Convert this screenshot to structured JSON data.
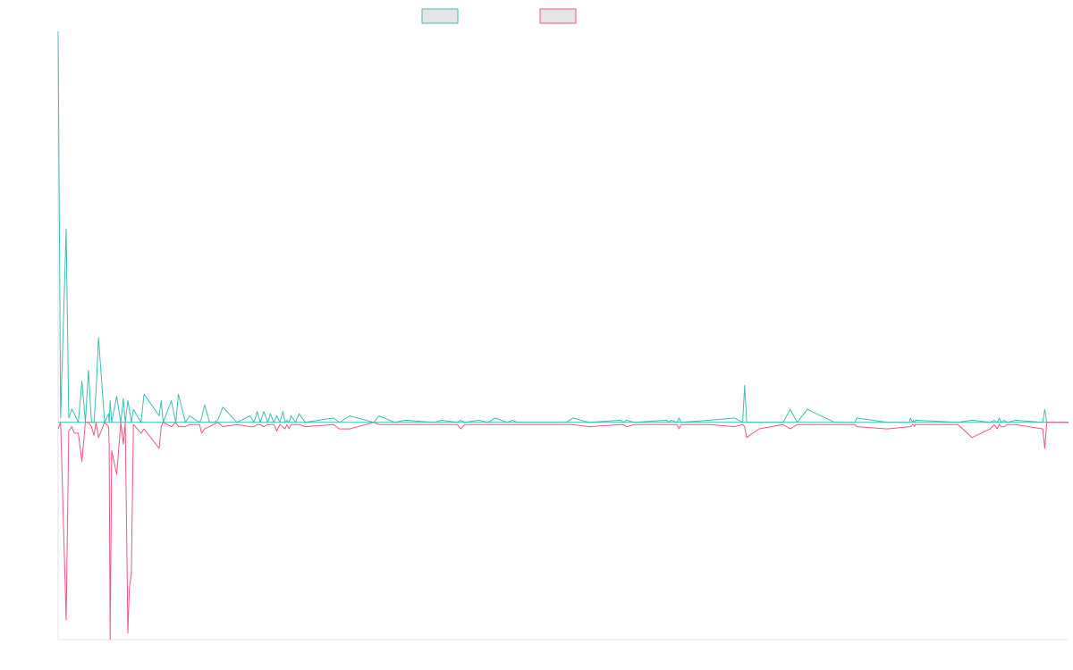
{
  "chart_data": {
    "type": "line",
    "title": "",
    "xlabel": "",
    "ylabel": "",
    "x_range": [
      0,
      1
    ],
    "ylim": [
      -100,
      180
    ],
    "grid": false,
    "legend_placement": "top-center",
    "colors": {
      "series_0": "#3dbdb7",
      "series_1": "#f0577d",
      "legend_fill": "#e5e5e5",
      "axis": "#e0e0e0",
      "baseline": "#3dbdb7"
    },
    "series": [
      {
        "x": [
          0,
          0.0025,
          0.008,
          0.0105,
          0.0135,
          0.016,
          0.02,
          0.0235,
          0.027,
          0.03,
          0.033,
          0.0355,
          0.0375,
          0.04,
          0.046,
          0.05,
          0.0505,
          0.0515,
          0.053,
          0.058,
          0.062,
          0.0645,
          0.0665,
          0.069,
          0.0705,
          0.0725,
          0.0745,
          0.082,
          0.085,
          0.1,
          0.102,
          0.104,
          0.112,
          0.1165,
          0.119,
          0.126,
          0.13,
          0.14,
          0.142,
          0.145,
          0.15,
          0.154,
          0.158,
          0.163,
          0.177,
          0.19,
          0.194,
          0.197,
          0.2,
          0.2035,
          0.2075,
          0.21,
          0.2135,
          0.2165,
          0.2195,
          0.2225,
          0.2245,
          0.2265,
          0.2285,
          0.2305,
          0.235,
          0.2385,
          0.2445,
          0.2725,
          0.2785,
          0.2885,
          0.3125,
          0.3175,
          0.333,
          0.3435,
          0.372,
          0.3795,
          0.395,
          0.3985,
          0.4025,
          0.4165,
          0.4255,
          0.4325,
          0.4445,
          0.4495,
          0.4545,
          0.503,
          0.5095,
          0.5255,
          0.557,
          0.5595,
          0.5625,
          0.5705,
          0.6025,
          0.6045,
          0.6065,
          0.6125,
          0.6145,
          0.6165,
          0.6445,
          0.6695,
          0.6775,
          0.6795,
          0.6815,
          0.6935,
          0.7175,
          0.7245,
          0.7315,
          0.7415,
          0.7685,
          0.7865,
          0.7885,
          0.7905,
          0.8205,
          0.8425,
          0.8435,
          0.8455,
          0.8465,
          0.8475,
          0.8485,
          0.8905,
          0.9045,
          0.9225,
          0.9265,
          0.9295,
          0.9315,
          0.9335,
          0.9365,
          0.9395,
          0.9475,
          0.9745,
          0.9765,
          0.9785,
          1
        ],
        "y": [
          180,
          2,
          89,
          2,
          6,
          4,
          0,
          19,
          0,
          24,
          0,
          0,
          14,
          39,
          0,
          4,
          0,
          10,
          0,
          12,
          0,
          11,
          0,
          10,
          6,
          0,
          6,
          0,
          13,
          3,
          10,
          0,
          10,
          0,
          13,
          0,
          3,
          0,
          2,
          8,
          0,
          0,
          1,
          7,
          0,
          3,
          0,
          5,
          0,
          5,
          0,
          4,
          0,
          3,
          0,
          5,
          0,
          1,
          0,
          3,
          0,
          4,
          0,
          2,
          0,
          3,
          0,
          3,
          0,
          1,
          0,
          1,
          0,
          1,
          0,
          1,
          0,
          2,
          0,
          1,
          0,
          0,
          2,
          0,
          1,
          0,
          1,
          0,
          1,
          0,
          1,
          0,
          2,
          0,
          1,
          2,
          0,
          17,
          0,
          0,
          0,
          6,
          0,
          6,
          0,
          0,
          0,
          2,
          0,
          0,
          2,
          0,
          1,
          0,
          1,
          0,
          1,
          0,
          1,
          0,
          2,
          0,
          1,
          0,
          1,
          0,
          6,
          0,
          0
        ]
      },
      {
        "x": [
          0,
          0.0025,
          0.008,
          0.0105,
          0.0135,
          0.016,
          0.02,
          0.0235,
          0.027,
          0.03,
          0.033,
          0.0355,
          0.0375,
          0.04,
          0.046,
          0.05,
          0.0505,
          0.0515,
          0.053,
          0.058,
          0.062,
          0.0645,
          0.0665,
          0.069,
          0.0705,
          0.0725,
          0.0745,
          0.082,
          0.085,
          0.1,
          0.102,
          0.104,
          0.112,
          0.1165,
          0.119,
          0.126,
          0.13,
          0.14,
          0.142,
          0.145,
          0.15,
          0.154,
          0.158,
          0.163,
          0.177,
          0.19,
          0.194,
          0.197,
          0.2,
          0.2035,
          0.2075,
          0.21,
          0.2135,
          0.2165,
          0.2195,
          0.2225,
          0.2245,
          0.2265,
          0.2285,
          0.2305,
          0.235,
          0.2385,
          0.2445,
          0.2725,
          0.2785,
          0.2885,
          0.3125,
          0.3175,
          0.333,
          0.3435,
          0.372,
          0.3795,
          0.395,
          0.3985,
          0.4025,
          0.4165,
          0.4255,
          0.4325,
          0.4445,
          0.4495,
          0.4545,
          0.503,
          0.5095,
          0.5255,
          0.557,
          0.5595,
          0.5625,
          0.5705,
          0.6025,
          0.6045,
          0.6065,
          0.6125,
          0.6145,
          0.6165,
          0.6445,
          0.6695,
          0.6775,
          0.6795,
          0.6815,
          0.6935,
          0.7175,
          0.7245,
          0.7315,
          0.7415,
          0.7685,
          0.7865,
          0.7885,
          0.7905,
          0.8205,
          0.8425,
          0.8435,
          0.8455,
          0.8465,
          0.8475,
          0.8485,
          0.8905,
          0.9045,
          0.9225,
          0.9265,
          0.9295,
          0.9315,
          0.9335,
          0.9365,
          0.9395,
          0.9475,
          0.9745,
          0.9765,
          0.9785,
          1
        ],
        "y": [
          -3,
          0,
          -91,
          -4,
          -2,
          -5,
          -5,
          -18,
          0,
          0,
          -2,
          -6,
          0,
          -7,
          0,
          -2,
          -11,
          -100,
          -13,
          -24,
          0,
          -10,
          0,
          -97,
          -76,
          -70,
          -1,
          -5,
          -3,
          -12,
          -2,
          0,
          -2,
          0,
          -2,
          -2,
          -1,
          -1,
          -5,
          -3,
          -2,
          -1,
          0,
          -2,
          -1,
          -2,
          -2,
          -1,
          -1,
          -2,
          -1,
          -1,
          -1,
          -4,
          -1,
          -2,
          -3,
          -1,
          -3,
          -1,
          -1,
          -1,
          -2,
          -1,
          -3,
          -3,
          0,
          -1,
          -1,
          -1,
          -1,
          -1,
          -1,
          -3,
          -1,
          -1,
          -1,
          -1,
          -1,
          -1,
          -1,
          -1,
          -1,
          -2,
          -1,
          -1,
          -2,
          -1,
          -1,
          -1,
          -1,
          -1,
          -3,
          -1,
          -1,
          -2,
          -1,
          -2,
          -7,
          -3,
          -1,
          -3,
          -1,
          -1,
          -1,
          -1,
          -1,
          -2,
          -3,
          -2,
          -2,
          -1,
          -1,
          -2,
          -1,
          -1,
          -7,
          -3,
          -1,
          -3,
          -1,
          -2,
          -2,
          -1,
          -1,
          -3,
          -12,
          0,
          0
        ]
      }
    ]
  }
}
